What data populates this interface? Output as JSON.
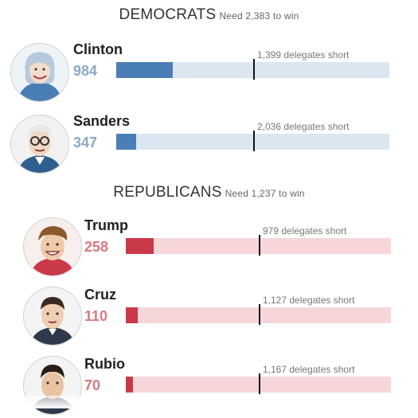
{
  "democrats": {
    "title": "DEMOCRATS",
    "need": "Need 2,383 to win",
    "goal": 2383,
    "candidates": [
      {
        "name": "Clinton",
        "count": "984",
        "delegates": 984,
        "short": "1,399 delegates short",
        "avatar_icon": "clinton-portrait-icon"
      },
      {
        "name": "Sanders",
        "count": "347",
        "delegates": 347,
        "short": "2,036 delegates short",
        "avatar_icon": "sanders-portrait-icon"
      }
    ]
  },
  "republicans": {
    "title": "REPUBLICANS",
    "need": "Need 1,237 to win",
    "goal": 1237,
    "candidates": [
      {
        "name": "Trump",
        "count": "258",
        "delegates": 258,
        "short": "979 delegates short",
        "avatar_icon": "trump-portrait-icon"
      },
      {
        "name": "Cruz",
        "count": "110",
        "delegates": 110,
        "short": "1,127 delegates short",
        "avatar_icon": "cruz-portrait-icon"
      },
      {
        "name": "Rubio",
        "count": "70",
        "delegates": 70,
        "short": "1,167 delegates short",
        "avatar_icon": "rubio-portrait-icon"
      }
    ]
  },
  "colors": {
    "dem_fill": "#4a7fb5",
    "dem_track": "#dbe6f0",
    "rep_fill": "#c9394a",
    "rep_track": "#f6d6d9"
  }
}
